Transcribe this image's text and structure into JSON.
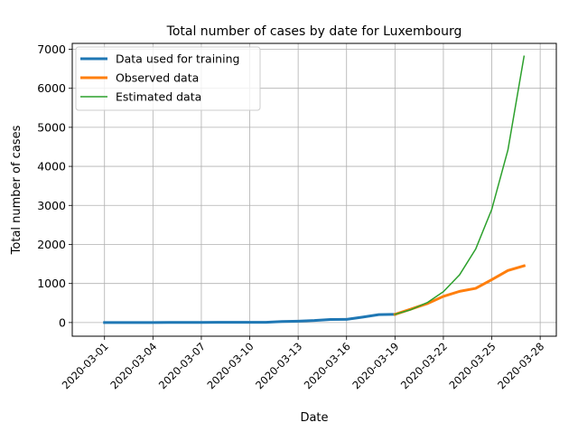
{
  "chart_data": {
    "type": "line",
    "title": "Total number of cases by date for Luxembourg",
    "xlabel": "Date",
    "ylabel": "Total number of cases",
    "xlim": [
      "2020-02-28",
      "2020-03-29"
    ],
    "ylim": [
      -350,
      7150
    ],
    "grid": true,
    "legend": "top-left",
    "x_ticks": [
      "2020-03-01",
      "2020-03-04",
      "2020-03-07",
      "2020-03-10",
      "2020-03-13",
      "2020-03-16",
      "2020-03-19",
      "2020-03-22",
      "2020-03-25",
      "2020-03-28"
    ],
    "y_ticks": [
      0,
      1000,
      2000,
      3000,
      4000,
      5000,
      6000,
      7000
    ],
    "series": [
      {
        "name": "Data used for training",
        "color": "#1f77b4",
        "style": "thick",
        "x": [
          "2020-03-01",
          "2020-03-02",
          "2020-03-03",
          "2020-03-04",
          "2020-03-05",
          "2020-03-06",
          "2020-03-07",
          "2020-03-08",
          "2020-03-09",
          "2020-03-10",
          "2020-03-11",
          "2020-03-12",
          "2020-03-13",
          "2020-03-14",
          "2020-03-15",
          "2020-03-16",
          "2020-03-17",
          "2020-03-18",
          "2020-03-19"
        ],
        "y": [
          1,
          1,
          1,
          1,
          2,
          3,
          4,
          5,
          5,
          7,
          7,
          26,
          34,
          51,
          77,
          81,
          140,
          203,
          210
        ]
      },
      {
        "name": "Observed data",
        "color": "#ff7f0e",
        "style": "thick",
        "x": [
          "2020-03-19",
          "2020-03-20",
          "2020-03-21",
          "2020-03-22",
          "2020-03-23",
          "2020-03-24",
          "2020-03-25",
          "2020-03-26",
          "2020-03-27"
        ],
        "y": [
          210,
          345,
          484,
          670,
          798,
          875,
          1099,
          1333,
          1453
        ]
      },
      {
        "name": "Estimated data",
        "color": "#2ca02c",
        "style": "thin",
        "x": [
          "2020-03-19",
          "2020-03-20",
          "2020-03-21",
          "2020-03-22",
          "2020-03-23",
          "2020-03-24",
          "2020-03-25",
          "2020-03-26",
          "2020-03-27"
        ],
        "y": [
          210,
          330,
          510,
          790,
          1220,
          1880,
          2900,
          4420,
          6820
        ]
      }
    ]
  }
}
